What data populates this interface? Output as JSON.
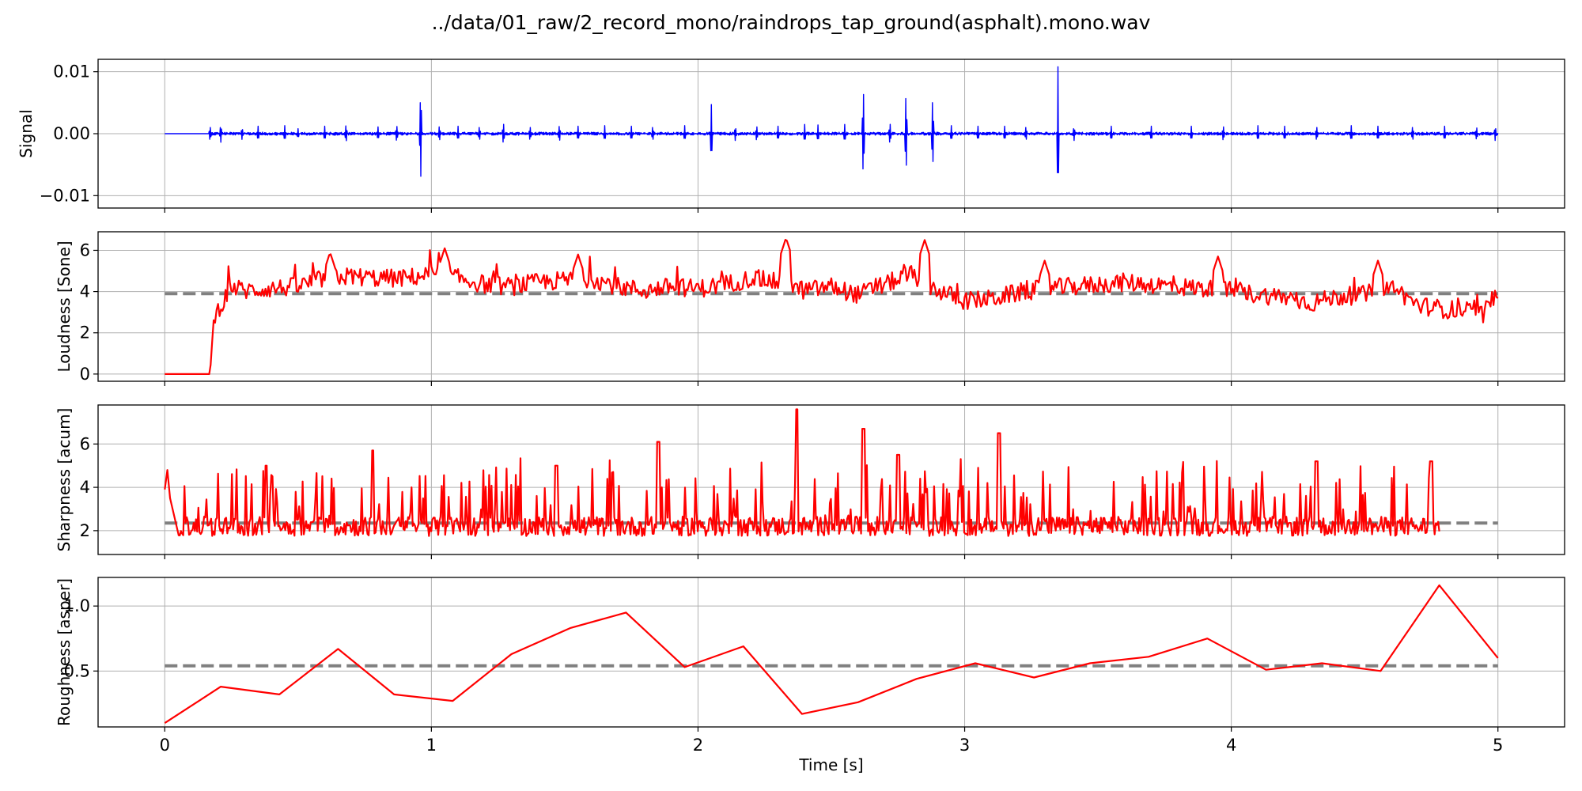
{
  "title": "../data/01_raw/2_record_mono/raindrops_tap_ground(asphalt).mono.wav",
  "chart_data": [
    {
      "type": "line",
      "ylabel": "Signal",
      "xlim": [
        -0.25,
        5.25
      ],
      "ylim": [
        -0.012,
        0.012
      ],
      "yticks": [
        {
          "v": 0.01,
          "label": "0.01"
        },
        {
          "v": 0.0,
          "label": "0.00"
        },
        {
          "v": -0.01,
          "label": "−0.01"
        }
      ],
      "xticks": [
        0,
        1,
        2,
        3,
        4,
        5
      ],
      "grid": true,
      "color": "#0000ff",
      "series": [
        {
          "kind": "spikes",
          "baseline_noise": 0.0004,
          "silent_until": 0.17,
          "x_end": 5.0,
          "events": [
            [
              0.17,
              0.0012
            ],
            [
              0.21,
              0.0015
            ],
            [
              0.29,
              0.001
            ],
            [
              0.35,
              0.0012
            ],
            [
              0.45,
              0.0013
            ],
            [
              0.5,
              0.0008
            ],
            [
              0.6,
              0.0012
            ],
            [
              0.68,
              0.0015
            ],
            [
              0.8,
              0.0011
            ],
            [
              0.87,
              0.0014
            ],
            [
              0.96,
              0.0075
            ],
            [
              1.03,
              0.0013
            ],
            [
              1.1,
              0.0012
            ],
            [
              1.18,
              0.0012
            ],
            [
              1.27,
              0.0018
            ],
            [
              1.37,
              0.0012
            ],
            [
              1.48,
              0.0014
            ],
            [
              1.55,
              0.0012
            ],
            [
              1.65,
              0.0013
            ],
            [
              1.75,
              0.0012
            ],
            [
              1.83,
              0.0012
            ],
            [
              1.95,
              0.0013
            ],
            [
              2.05,
              0.0047
            ],
            [
              2.14,
              0.0012
            ],
            [
              2.22,
              0.0013
            ],
            [
              2.3,
              0.0012
            ],
            [
              2.4,
              0.0015
            ],
            [
              2.45,
              0.0014
            ],
            [
              2.55,
              0.0015
            ],
            [
              2.62,
              0.0076
            ],
            [
              2.72,
              0.0018
            ],
            [
              2.78,
              0.0068
            ],
            [
              2.88,
              0.006
            ],
            [
              2.95,
              0.0013
            ],
            [
              3.05,
              0.0012
            ],
            [
              3.15,
              0.0012
            ],
            [
              3.23,
              0.0012
            ],
            [
              3.35,
              0.0108
            ],
            [
              3.41,
              0.0012
            ],
            [
              3.55,
              0.0012
            ],
            [
              3.7,
              0.0012
            ],
            [
              3.85,
              0.0012
            ],
            [
              3.97,
              0.0013
            ],
            [
              4.1,
              0.0013
            ],
            [
              4.2,
              0.0012
            ],
            [
              4.32,
              0.0012
            ],
            [
              4.45,
              0.0013
            ],
            [
              4.55,
              0.0012
            ],
            [
              4.68,
              0.0012
            ],
            [
              4.8,
              0.0012
            ],
            [
              4.92,
              0.0011
            ],
            [
              4.99,
              0.0012
            ]
          ]
        }
      ]
    },
    {
      "type": "line",
      "ylabel": "Loudness [Sone]",
      "xlim": [
        -0.25,
        5.25
      ],
      "ylim": [
        -0.35,
        6.9
      ],
      "yticks": [
        {
          "v": 0,
          "label": "0"
        },
        {
          "v": 2,
          "label": "2"
        },
        {
          "v": 4,
          "label": "4"
        },
        {
          "v": 6,
          "label": "6"
        }
      ],
      "xticks": [
        0,
        1,
        2,
        3,
        4,
        5
      ],
      "grid": true,
      "color": "#ff0000",
      "reference_line": {
        "y": 3.9,
        "color": "#808080"
      },
      "series": [
        {
          "kind": "noisy",
          "x": [
            0,
            0.17,
            0.18,
            0.19,
            0.22,
            0.25,
            0.3,
            0.4,
            0.5,
            0.6,
            0.7,
            0.8,
            0.9,
            1.0,
            1.1,
            1.2,
            1.3,
            1.4,
            1.5,
            1.6,
            1.7,
            1.8,
            1.9,
            2.0,
            2.1,
            2.2,
            2.3,
            2.4,
            2.5,
            2.6,
            2.7,
            2.8,
            2.9,
            3.0,
            3.1,
            3.2,
            3.3,
            3.4,
            3.5,
            3.6,
            3.7,
            3.8,
            3.9,
            4.0,
            4.1,
            4.2,
            4.3,
            4.4,
            4.5,
            4.6,
            4.7,
            4.8,
            4.9,
            4.95,
            5.0
          ],
          "y": [
            0,
            0,
            2.0,
            2.9,
            3.5,
            4.2,
            4.0,
            4.1,
            4.2,
            4.6,
            4.7,
            4.6,
            4.6,
            4.8,
            4.6,
            4.3,
            4.2,
            4.4,
            4.5,
            4.6,
            4.2,
            4.0,
            4.2,
            4.1,
            4.3,
            4.6,
            4.4,
            4.0,
            4.2,
            3.8,
            4.3,
            4.8,
            4.0,
            3.5,
            3.6,
            3.9,
            4.1,
            4.2,
            4.3,
            4.4,
            4.3,
            4.2,
            4.1,
            4.0,
            3.8,
            3.7,
            3.4,
            3.7,
            3.8,
            4.2,
            3.3,
            3.1,
            3.0,
            2.8,
            3.8
          ],
          "peaks": [
            [
              2.33,
              6.6
            ],
            [
              2.85,
              6.5
            ],
            [
              1.05,
              6.1
            ],
            [
              0.62,
              5.9
            ],
            [
              1.55,
              5.8
            ],
            [
              4.55,
              5.5
            ],
            [
              3.3,
              5.5
            ],
            [
              3.95,
              5.7
            ]
          ]
        }
      ]
    },
    {
      "type": "line",
      "ylabel": "Sharpness [acum]",
      "xlim": [
        -0.25,
        5.25
      ],
      "ylim": [
        0.9,
        7.8
      ],
      "yticks": [
        {
          "v": 2,
          "label": "2"
        },
        {
          "v": 4,
          "label": "4"
        },
        {
          "v": 6,
          "label": "6"
        }
      ],
      "xticks": [
        0,
        1,
        2,
        3,
        4,
        5
      ],
      "grid": true,
      "color": "#ff0000",
      "reference_line": {
        "y": 2.35,
        "color": "#808080"
      },
      "series": [
        {
          "kind": "spiky",
          "x_end": 4.78,
          "base": 2.2,
          "start": [
            [
              0.0,
              3.9
            ],
            [
              0.01,
              4.8
            ],
            [
              0.02,
              3.5
            ]
          ],
          "peaks": [
            [
              2.37,
              7.6
            ],
            [
              2.62,
              6.7
            ],
            [
              3.13,
              6.5
            ],
            [
              1.85,
              6.1
            ],
            [
              0.78,
              5.7
            ],
            [
              2.75,
              5.5
            ],
            [
              4.32,
              5.2
            ],
            [
              4.75,
              5.2
            ],
            [
              0.38,
              5.0
            ],
            [
              1.47,
              5.0
            ]
          ]
        }
      ]
    },
    {
      "type": "line",
      "ylabel": "Roughness [asper]",
      "xlabel": "Time [s]",
      "xlim": [
        -0.25,
        5.25
      ],
      "ylim": [
        0.07,
        1.22
      ],
      "yticks": [
        {
          "v": 0.5,
          "label": "0.5"
        },
        {
          "v": 1.0,
          "label": "1.0"
        }
      ],
      "xticks": [
        0,
        1,
        2,
        3,
        4,
        5
      ],
      "xticklabels": [
        "0",
        "1",
        "2",
        "3",
        "4",
        "5"
      ],
      "grid": true,
      "color": "#ff0000",
      "reference_line": {
        "y": 0.54,
        "color": "#808080"
      },
      "series": [
        {
          "kind": "plain",
          "x": [
            0.0,
            0.21,
            0.43,
            0.65,
            0.86,
            1.08,
            1.3,
            1.52,
            1.73,
            1.95,
            2.17,
            2.39,
            2.6,
            2.82,
            3.04,
            3.26,
            3.47,
            3.69,
            3.91,
            4.13,
            4.34,
            4.56,
            4.78,
            5.0
          ],
          "y": [
            0.1,
            0.38,
            0.32,
            0.67,
            0.32,
            0.27,
            0.63,
            0.83,
            0.95,
            0.53,
            0.69,
            0.17,
            0.26,
            0.44,
            0.56,
            0.45,
            0.56,
            0.61,
            0.75,
            0.51,
            0.56,
            0.5,
            1.16,
            0.6
          ]
        }
      ]
    }
  ]
}
